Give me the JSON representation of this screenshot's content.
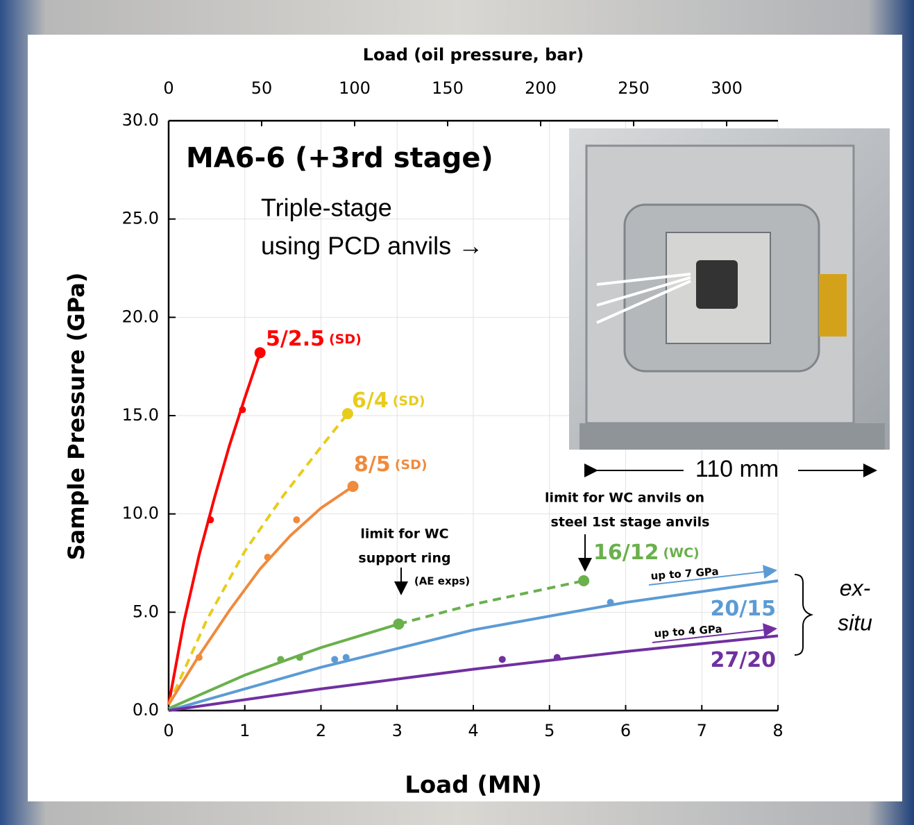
{
  "chart_data": {
    "type": "line",
    "title": "MA6-6 (+3rd stage)",
    "x_label": "Load (MN)",
    "x2_label": "Load (oil pressure, bar)",
    "y_label": "Sample Pressure (GPa)",
    "xlim": [
      0,
      8
    ],
    "xticks": [
      0,
      1,
      2,
      3,
      4,
      5,
      6,
      7,
      8
    ],
    "x2lim": [
      0,
      327.6
    ],
    "x2ticks": [
      0,
      50,
      100,
      150,
      200,
      250,
      300
    ],
    "ylim": [
      0,
      30
    ],
    "yticks": [
      {
        "value": 0,
        "label": "0.0"
      },
      {
        "value": 5,
        "label": "5.0"
      },
      {
        "value": 10,
        "label": "10.0"
      },
      {
        "value": 15,
        "label": "15.0"
      },
      {
        "value": 20,
        "label": "20.0"
      },
      {
        "value": 25,
        "label": "25.0"
      },
      {
        "value": 30,
        "label": "30.0"
      }
    ],
    "grid": true,
    "series": [
      {
        "name": "5/2.5",
        "note": "(SD)",
        "color": "#ff0000",
        "dashed": false,
        "x": [
          0.55,
          0.97
        ],
        "values": [
          9.7,
          15.3
        ],
        "end_x": [
          1.2
        ],
        "end_values": [
          18.2
        ],
        "fit_x": [
          0,
          0.2,
          0.4,
          0.6,
          0.8,
          1.0,
          1.2
        ],
        "fit_values": [
          0.3,
          4.5,
          7.9,
          10.8,
          13.5,
          15.9,
          18.2
        ]
      },
      {
        "name": "6/4",
        "note": "(SD)",
        "color": "#e8cc1c",
        "dashed": true,
        "x": [],
        "values": [],
        "end_x": [
          2.35
        ],
        "end_values": [
          15.1
        ],
        "fit_x": [
          0,
          0.5,
          1.0,
          1.5,
          2.0,
          2.35
        ],
        "fit_values": [
          0.3,
          4.6,
          8.1,
          10.9,
          13.4,
          15.1
        ]
      },
      {
        "name": "8/5",
        "note": "(SD)",
        "color": "#f08a3c",
        "dashed": false,
        "x": [
          0.4,
          1.3,
          1.68
        ],
        "values": [
          2.7,
          7.8,
          9.7
        ],
        "end_x": [
          2.42
        ],
        "end_values": [
          11.4
        ],
        "fit_x": [
          0,
          0.4,
          0.8,
          1.2,
          1.6,
          2.0,
          2.42
        ],
        "fit_values": [
          0.3,
          2.8,
          5.1,
          7.2,
          8.9,
          10.3,
          11.4
        ]
      },
      {
        "name": "16/12",
        "note": "(WC)",
        "color": "#6ab04c",
        "dashed": false,
        "x": [
          1.47,
          1.72
        ],
        "values": [
          2.6,
          2.7
        ],
        "end_x": [
          3.02,
          5.45
        ],
        "end_values": [
          4.4,
          6.6
        ],
        "fit_x": [
          0,
          1,
          2,
          3.02
        ],
        "fit_values": [
          0.1,
          1.8,
          3.2,
          4.4
        ],
        "ext_x": [
          3.02,
          4.0,
          5.45
        ],
        "ext_values": [
          4.4,
          5.4,
          6.6
        ]
      },
      {
        "name": "20/15",
        "color": "#5b9bd5",
        "dashed": false,
        "arrow_label": "up to 7 GPa",
        "x": [
          2.18,
          2.33,
          5.8
        ],
        "values": [
          2.6,
          2.7,
          5.5
        ],
        "fit_x": [
          0,
          2,
          4,
          6,
          8
        ],
        "fit_values": [
          0,
          2.2,
          4.1,
          5.5,
          6.6
        ]
      },
      {
        "name": "27/20",
        "color": "#7030a0",
        "dashed": false,
        "arrow_label": "up to 4 GPa",
        "x": [
          4.38,
          5.1
        ],
        "values": [
          2.6,
          2.7
        ],
        "fit_x": [
          0,
          2,
          4,
          6,
          8
        ],
        "fit_values": [
          0,
          1.1,
          2.1,
          3.0,
          3.8
        ]
      }
    ],
    "annotations": {
      "support_ring": [
        "limit for WC",
        "support ring"
      ],
      "support_ring_note": "(AE exps)",
      "wc_anvils": [
        "limit for WC anvils on",
        "steel 1st stage anvils"
      ],
      "triple_stage": [
        "Triple-stage",
        "using PCD anvils →"
      ],
      "scale_bar": "110 mm",
      "ex_situ": [
        "ex-",
        "situ"
      ]
    }
  }
}
